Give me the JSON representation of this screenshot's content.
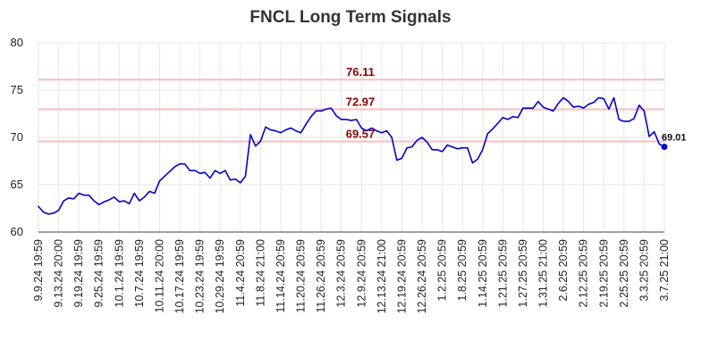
{
  "chart_data": {
    "type": "line",
    "title": "FNCL Long Term Signals",
    "xlabel": "",
    "ylabel": "",
    "ylim": [
      60,
      80
    ],
    "yticks": [
      60,
      65,
      70,
      75,
      80
    ],
    "grid": true,
    "colors": {
      "line": "#0000cc",
      "level_line": "#ffbbbb",
      "level_text": "#8b0000",
      "grid": "#e6e6e6"
    },
    "x_tick_labels": [
      "9.9.24 19:59",
      "9.13.24 20:00",
      "9.19.24 19:59",
      "9.25.24 19:59",
      "10.1.24 19:59",
      "10.7.24 19:59",
      "10.11.24 20:00",
      "10.17.24 19:59",
      "10.23.24 19:59",
      "10.29.24 19:59",
      "11.4.24 20:59",
      "11.8.24 21:00",
      "11.14.24 20:59",
      "11.20.24 20:59",
      "11.26.24 20:59",
      "12.3.24 20:59",
      "12.9.24 20:59",
      "12.13.24 21:00",
      "12.19.24 20:59",
      "12.26.24 20:59",
      "1.2.25 20:59",
      "1.8.25 20:59",
      "1.14.25 20:59",
      "1.21.25 20:59",
      "1.27.25 20:59",
      "1.31.25 21:00",
      "2.6.25 20:59",
      "2.12.25 20:59",
      "2.19.25 20:59",
      "2.25.25 20:59",
      "3.3.25 20:59",
      "3.7.25 21:00"
    ],
    "levels": [
      {
        "value": 76.11,
        "label": "76.11"
      },
      {
        "value": 72.97,
        "label": "72.97"
      },
      {
        "value": 69.57,
        "label": "69.57"
      }
    ],
    "last_point": {
      "value": 69.01,
      "label": "69.01"
    },
    "series": [
      {
        "values": [
          62.7,
          62.1,
          61.9,
          62.0,
          62.3,
          63.3,
          63.6,
          63.5,
          64.1,
          63.9,
          63.9,
          63.3,
          62.9,
          63.2,
          63.4,
          63.7,
          63.2,
          63.3,
          63.0,
          64.1,
          63.3,
          63.7,
          64.3,
          64.1,
          65.4,
          65.9,
          66.4,
          66.9,
          67.2,
          67.2,
          66.5,
          66.5,
          66.2,
          66.3,
          65.7,
          66.5,
          66.2,
          66.5,
          65.5,
          65.6,
          65.2,
          65.9,
          70.3,
          69.1,
          69.6,
          71.1,
          70.8,
          70.7,
          70.5,
          70.8,
          71.0,
          70.7,
          70.5,
          71.4,
          72.2,
          72.8,
          72.8,
          73.0,
          73.1,
          72.3,
          71.9,
          71.9,
          71.8,
          71.9,
          71.0,
          70.7,
          71.0,
          70.7,
          70.5,
          70.7,
          70.0,
          67.6,
          67.8,
          68.9,
          69.0,
          69.7,
          70.0,
          69.5,
          68.7,
          68.7,
          68.5,
          69.2,
          69.0,
          68.8,
          68.9,
          68.9,
          67.3,
          67.7,
          68.7,
          70.4,
          70.9,
          71.5,
          72.1,
          71.9,
          72.2,
          72.1,
          73.1,
          73.1,
          73.1,
          73.8,
          73.2,
          73.0,
          72.8,
          73.6,
          74.2,
          73.8,
          73.2,
          73.3,
          73.1,
          73.5,
          73.7,
          74.2,
          74.1,
          73.0,
          74.2,
          71.9,
          71.7,
          71.7,
          72.0,
          73.4,
          72.8,
          70.1,
          70.6,
          69.3,
          69.01
        ]
      }
    ]
  }
}
